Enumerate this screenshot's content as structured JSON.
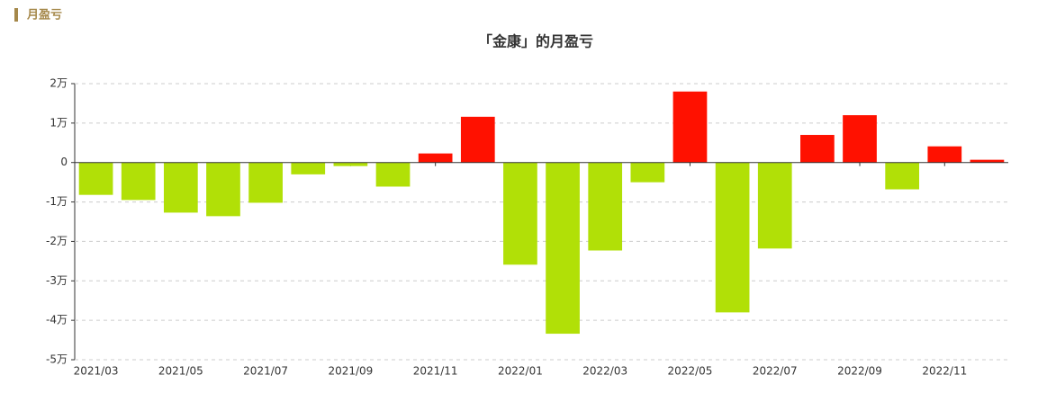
{
  "header": {
    "title": "月盈亏"
  },
  "chart_data": {
    "type": "bar",
    "title": "「金康」的月盈亏",
    "categories": [
      "2021/03",
      null,
      "2021/05",
      null,
      "2021/07",
      null,
      "2021/09",
      null,
      "2021/11",
      null,
      "2022/01",
      null,
      "2022/03",
      null,
      "2022/05",
      null,
      "2022/07",
      null,
      "2022/09",
      null,
      "2022/11",
      null
    ],
    "values": [
      -8200,
      -9500,
      -12700,
      -13600,
      -10200,
      -3000,
      -900,
      -6100,
      2300,
      11600,
      -25900,
      -43400,
      -22300,
      -5000,
      18000,
      -38000,
      -21800,
      7000,
      12000,
      -6800,
      4100,
      700
    ],
    "positive_color": "#ff1100",
    "negative_color": "#b1e007",
    "ylim": [
      -50000,
      20000
    ],
    "yticks": [
      {
        "value": -50000,
        "label": "-5万"
      },
      {
        "value": -40000,
        "label": "-4万"
      },
      {
        "value": -30000,
        "label": "-3万"
      },
      {
        "value": -20000,
        "label": "-2万"
      },
      {
        "value": -10000,
        "label": "-1万"
      },
      0,
      {
        "value": 10000,
        "label": "1万"
      },
      {
        "value": 20000,
        "label": "2万"
      }
    ],
    "grid": true
  }
}
